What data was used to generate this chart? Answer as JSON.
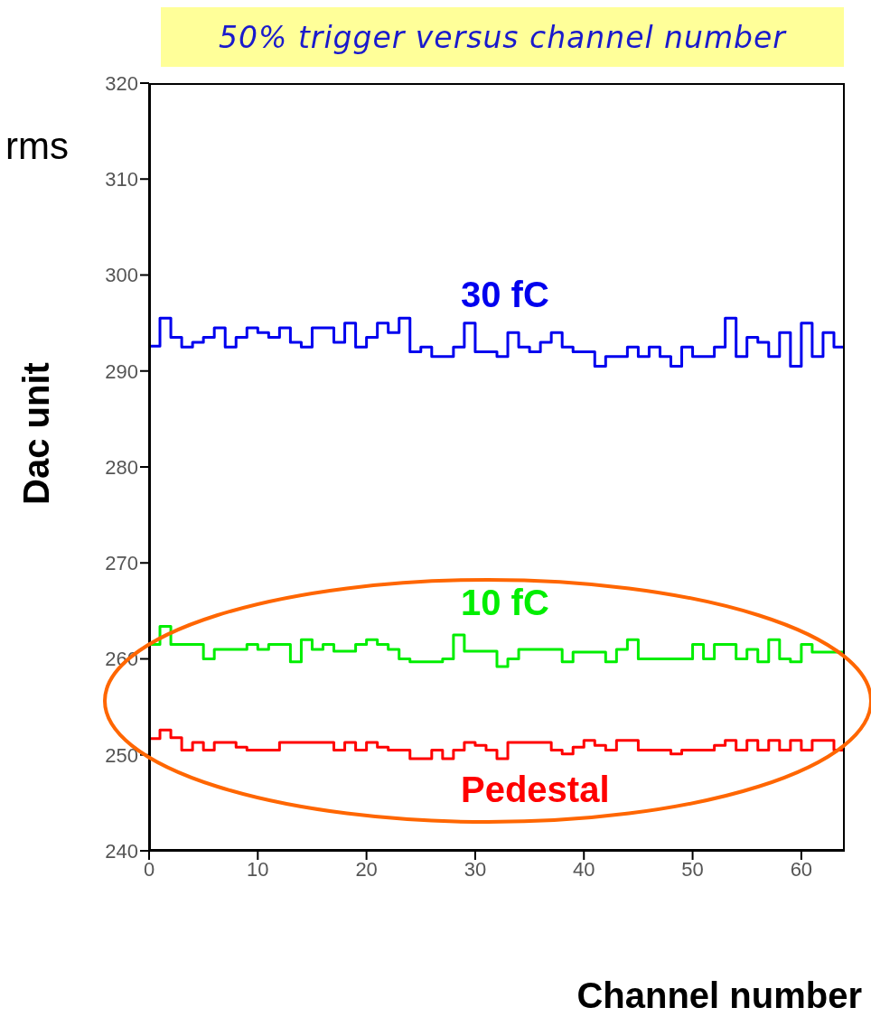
{
  "chart_data": {
    "type": "histogram",
    "title": "50% trigger versus channel number",
    "xlabel": "Channel number",
    "ylabel": "Dac unit",
    "annotations": [
      "rms"
    ],
    "bins": [
      0,
      1,
      2,
      3,
      4,
      5,
      6,
      7,
      8,
      9,
      10,
      11,
      12,
      13,
      14,
      15,
      16,
      17,
      18,
      19,
      20,
      21,
      22,
      23,
      24,
      25,
      26,
      27,
      28,
      29,
      30,
      31,
      32,
      33,
      34,
      35,
      36,
      37,
      38,
      39,
      40,
      41,
      42,
      43,
      44,
      45,
      46,
      47,
      48,
      49,
      50,
      51,
      52,
      53,
      54,
      55,
      56,
      57,
      58,
      59,
      60,
      61,
      62,
      63,
      64
    ],
    "series": [
      {
        "name": "Pedestal",
        "color": "#ff0000",
        "values": [
          251.7,
          252.6,
          251.8,
          250.5,
          251.3,
          250.5,
          251.3,
          251.3,
          250.8,
          250.5,
          250.5,
          250.5,
          251.3,
          251.3,
          251.3,
          251.3,
          251.3,
          250.5,
          251.3,
          250.5,
          251.3,
          250.8,
          250.5,
          250.5,
          249.6,
          249.6,
          250.5,
          249.6,
          250.5,
          251.3,
          251,
          250.5,
          249.6,
          251.3,
          251.3,
          251.3,
          251.3,
          250.5,
          250.1,
          250.8,
          251.5,
          251,
          250.5,
          251.5,
          251.5,
          250.5,
          250.5,
          250.5,
          250.1,
          250.5,
          250.5,
          250.5,
          251,
          251.5,
          250.5,
          251.5,
          250.5,
          251.5,
          250.5,
          251.5,
          250.5,
          251.5,
          251.5,
          250.5
        ]
      },
      {
        "name": "10 fC",
        "color": "#00ee00",
        "values": [
          261.5,
          263.4,
          261.5,
          261.5,
          261.5,
          260,
          261,
          261,
          261,
          261.5,
          261,
          261.5,
          261.5,
          259.7,
          262,
          261,
          261.5,
          260.8,
          260.8,
          261.5,
          262,
          261.5,
          261,
          260,
          259.7,
          259.7,
          259.7,
          260,
          262.5,
          260.8,
          260.8,
          260.8,
          259.2,
          260,
          261,
          261,
          261,
          261,
          259.7,
          260.7,
          260.7,
          260.7,
          259.7,
          261,
          262,
          260,
          260,
          260,
          260,
          260,
          261.5,
          260,
          261.5,
          261.5,
          260,
          261,
          259.7,
          262,
          260,
          259.7,
          261.5,
          260.7,
          260.7,
          260.7
        ]
      },
      {
        "name": "30 fC",
        "color": "#0000ee",
        "values": [
          292.6,
          295.5,
          293.5,
          292.5,
          293,
          293.5,
          294.5,
          292.5,
          293.5,
          294.5,
          294,
          293.5,
          294.5,
          293,
          292.5,
          294.5,
          294.5,
          293,
          295,
          292.5,
          293.5,
          295,
          294,
          295.5,
          292,
          292.5,
          291.5,
          291.5,
          292.5,
          295,
          292,
          292,
          291.5,
          294,
          292.5,
          292,
          293,
          294,
          292.5,
          292,
          292,
          290.5,
          291.5,
          291.5,
          292.5,
          291.5,
          292.5,
          291.5,
          290.5,
          292.5,
          291.5,
          291.5,
          292.5,
          295.5,
          291.5,
          293.5,
          293,
          291.5,
          294,
          290.5,
          295,
          291.5,
          294,
          292.5
        ]
      }
    ],
    "xlim": [
      0,
      64
    ],
    "xticks": [
      0,
      10,
      20,
      30,
      40,
      50,
      60
    ],
    "ylim": [
      240,
      320
    ],
    "yticks": [
      240,
      250,
      260,
      270,
      280,
      290,
      300,
      310,
      320
    ],
    "grid": false
  }
}
